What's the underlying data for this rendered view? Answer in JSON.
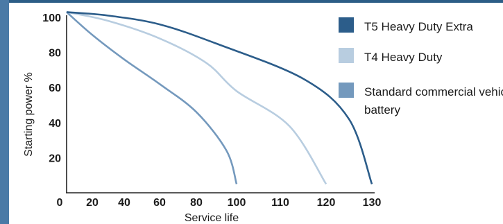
{
  "chart_data": {
    "type": "line",
    "ylabel": "Starting power %",
    "xlabel": "Service life",
    "x_origin_label": "0",
    "x_ticks": [
      "20",
      "40",
      "60",
      "80",
      "100",
      "110",
      "120",
      "130"
    ],
    "y_ticks": [
      "20",
      "40",
      "60",
      "80",
      "100"
    ],
    "ylim": [
      0,
      103
    ],
    "grid": false,
    "legend_position": "right",
    "series": [
      {
        "name": "T5 Heavy Duty Extra",
        "color": "#2c5d8a",
        "end_x": 130,
        "values": [
          [
            0,
            103
          ],
          [
            30,
            101
          ],
          [
            60,
            96
          ],
          [
            90,
            85
          ],
          [
            115,
            65
          ],
          [
            125,
            42
          ],
          [
            130,
            5
          ]
        ]
      },
      {
        "name": "T4 Heavy Duty",
        "color": "#b8cde0",
        "end_x": 120,
        "values": [
          [
            0,
            103
          ],
          [
            30,
            98
          ],
          [
            60,
            88
          ],
          [
            85,
            74
          ],
          [
            100,
            58
          ],
          [
            112,
            38
          ],
          [
            120,
            5
          ]
        ]
      },
      {
        "name": "Standard commercial vehicle battery",
        "color": "#7499bd",
        "end_x": 100,
        "values": [
          [
            0,
            103
          ],
          [
            20,
            90
          ],
          [
            40,
            76
          ],
          [
            60,
            62
          ],
          [
            80,
            46
          ],
          [
            95,
            24
          ],
          [
            100,
            5
          ]
        ]
      }
    ]
  }
}
